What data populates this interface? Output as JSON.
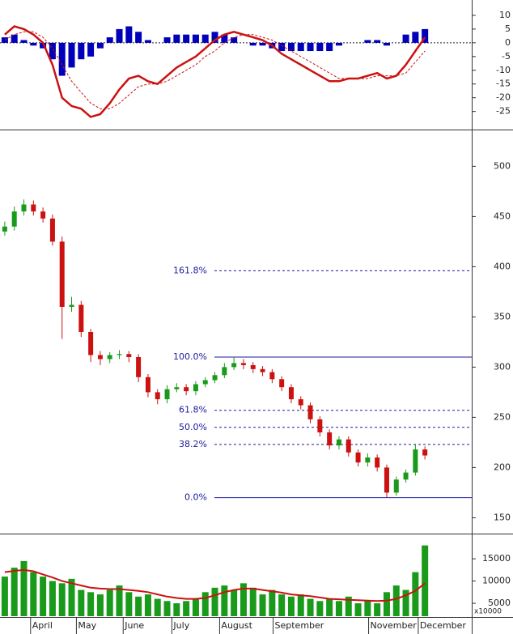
{
  "chart_data": [
    {
      "type": "macd",
      "ylim": [
        -31,
        15
      ],
      "yticks": [
        10,
        5,
        0,
        -5,
        -10,
        -15,
        -20,
        -25
      ],
      "baseline": 0,
      "macd": {
        "color": "#cc1111",
        "values": [
          3,
          6,
          5,
          3,
          0,
          -8,
          -20,
          -23,
          -24,
          -27,
          -26,
          -22,
          -17,
          -13,
          -12,
          -14,
          -15,
          -12,
          -9,
          -7,
          -5,
          -2,
          1,
          3,
          4,
          3,
          2,
          1,
          -1,
          -4,
          -6,
          -8,
          -10,
          -12,
          -14,
          -14,
          -13,
          -13,
          -12,
          -11,
          -13,
          -12,
          -8,
          -3,
          2
        ]
      },
      "signal": {
        "color": "#cc1111",
        "dashed": true,
        "values": [
          1,
          3,
          4,
          4,
          2,
          -2,
          -8,
          -14,
          -18,
          -22,
          -24,
          -24,
          -22,
          -19,
          -16,
          -15,
          -15,
          -14,
          -12,
          -10,
          -8,
          -5,
          -3,
          0,
          2,
          3,
          3,
          2,
          1,
          -1,
          -3,
          -5,
          -7,
          -9,
          -11,
          -13,
          -13,
          -13,
          -13,
          -12,
          -12,
          -12,
          -11,
          -7,
          -3
        ]
      },
      "histogram": {
        "color": "#0000bb",
        "values": [
          2,
          3,
          1,
          -1,
          -2,
          -6,
          -12,
          -9,
          -6,
          -5,
          -2,
          2,
          5,
          6,
          4,
          1,
          0,
          2,
          3,
          3,
          3,
          3,
          4,
          3,
          2,
          0,
          -1,
          -1,
          -2,
          -3,
          -3,
          -3,
          -3,
          -3,
          -3,
          -1,
          0,
          0,
          1,
          1,
          -1,
          0,
          3,
          4,
          5
        ]
      }
    },
    {
      "type": "candlestick",
      "ylim": [
        135,
        535
      ],
      "yticks": [
        150,
        200,
        250,
        300,
        350,
        400,
        450,
        500
      ],
      "up_color": "#1a9a1a",
      "down_color": "#cc1111",
      "open": [
        435,
        440,
        455,
        462,
        455,
        448,
        425,
        360,
        362,
        335,
        312,
        308,
        312,
        313,
        310,
        290,
        275,
        268,
        278,
        280,
        276,
        283,
        287,
        292,
        300,
        304,
        302,
        298,
        295,
        288,
        280,
        268,
        262,
        248,
        235,
        222,
        228,
        215,
        205,
        210,
        200,
        175,
        188,
        195,
        218
      ],
      "high": [
        445,
        460,
        467,
        466,
        459,
        452,
        430,
        370,
        366,
        338,
        316,
        315,
        317,
        316,
        313,
        293,
        278,
        282,
        284,
        283,
        286,
        290,
        295,
        304,
        310,
        308,
        305,
        301,
        298,
        291,
        283,
        271,
        265,
        251,
        238,
        231,
        231,
        218,
        214,
        213,
        203,
        191,
        198,
        223,
        221
      ],
      "low": [
        431,
        436,
        451,
        451,
        444,
        421,
        328,
        355,
        330,
        305,
        302,
        304,
        308,
        305,
        285,
        270,
        263,
        264,
        275,
        272,
        272,
        280,
        284,
        289,
        297,
        298,
        294,
        291,
        284,
        276,
        264,
        258,
        244,
        231,
        218,
        218,
        211,
        201,
        201,
        196,
        170,
        172,
        185,
        192,
        208
      ],
      "close": [
        440,
        455,
        462,
        455,
        448,
        425,
        360,
        362,
        335,
        312,
        308,
        312,
        313,
        310,
        290,
        275,
        268,
        278,
        280,
        276,
        283,
        287,
        292,
        300,
        304,
        302,
        298,
        295,
        288,
        280,
        268,
        262,
        248,
        235,
        222,
        228,
        215,
        205,
        210,
        200,
        175,
        188,
        195,
        218,
        212
      ],
      "fib_color": "#1a1aa0",
      "fib_levels": [
        {
          "value": 396,
          "label": "161.8%",
          "dashed": true
        },
        {
          "value": 310,
          "label": "100.0%",
          "dashed": false
        },
        {
          "value": 257,
          "label": "61.8%",
          "dashed": true
        },
        {
          "value": 240,
          "label": "50.0%",
          "dashed": true
        },
        {
          "value": 223,
          "label": "38.2%",
          "dashed": true
        },
        {
          "value": 170,
          "label": "0.0%",
          "dashed": false
        }
      ]
    },
    {
      "type": "bar",
      "ylim": [
        2100,
        20300
      ],
      "yticks": [
        5000,
        10000,
        15000
      ],
      "unit_label": "x10000",
      "color": "#1a9a1a",
      "values": [
        11000,
        13000,
        14500,
        12000,
        11000,
        10000,
        9500,
        10500,
        8000,
        7500,
        7000,
        8000,
        9000,
        7500,
        6500,
        7000,
        6000,
        5500,
        5000,
        5500,
        6000,
        7500,
        8500,
        9000,
        8000,
        9500,
        8500,
        7000,
        8000,
        7000,
        6500,
        7000,
        6000,
        5500,
        6000,
        5500,
        6500,
        5000,
        5500,
        5000,
        7500,
        9000,
        8000,
        12000,
        18000
      ],
      "ma": {
        "color": "#cc1111",
        "values": [
          12000,
          12300,
          12500,
          12200,
          11500,
          10800,
          10000,
          9500,
          9000,
          8500,
          8300,
          8200,
          8200,
          8000,
          7800,
          7500,
          7000,
          6500,
          6200,
          6000,
          6000,
          6200,
          6800,
          7500,
          8000,
          8300,
          8300,
          8000,
          7700,
          7400,
          7000,
          6800,
          6600,
          6300,
          6000,
          5900,
          5800,
          5700,
          5600,
          5500,
          5600,
          6000,
          6800,
          7800,
          9500
        ]
      },
      "xlim": [
        -0.5,
        48.9
      ],
      "xticks": [
        {
          "value": 2.7,
          "label": "April"
        },
        {
          "value": 7.5,
          "label": "May"
        },
        {
          "value": 12.4,
          "label": "June"
        },
        {
          "value": 17.5,
          "label": "July"
        },
        {
          "value": 22.5,
          "label": "August"
        },
        {
          "value": 28.1,
          "label": "September"
        },
        {
          "value": 38.1,
          "label": "November"
        },
        {
          "value": 43.3,
          "label": "December"
        }
      ]
    }
  ]
}
